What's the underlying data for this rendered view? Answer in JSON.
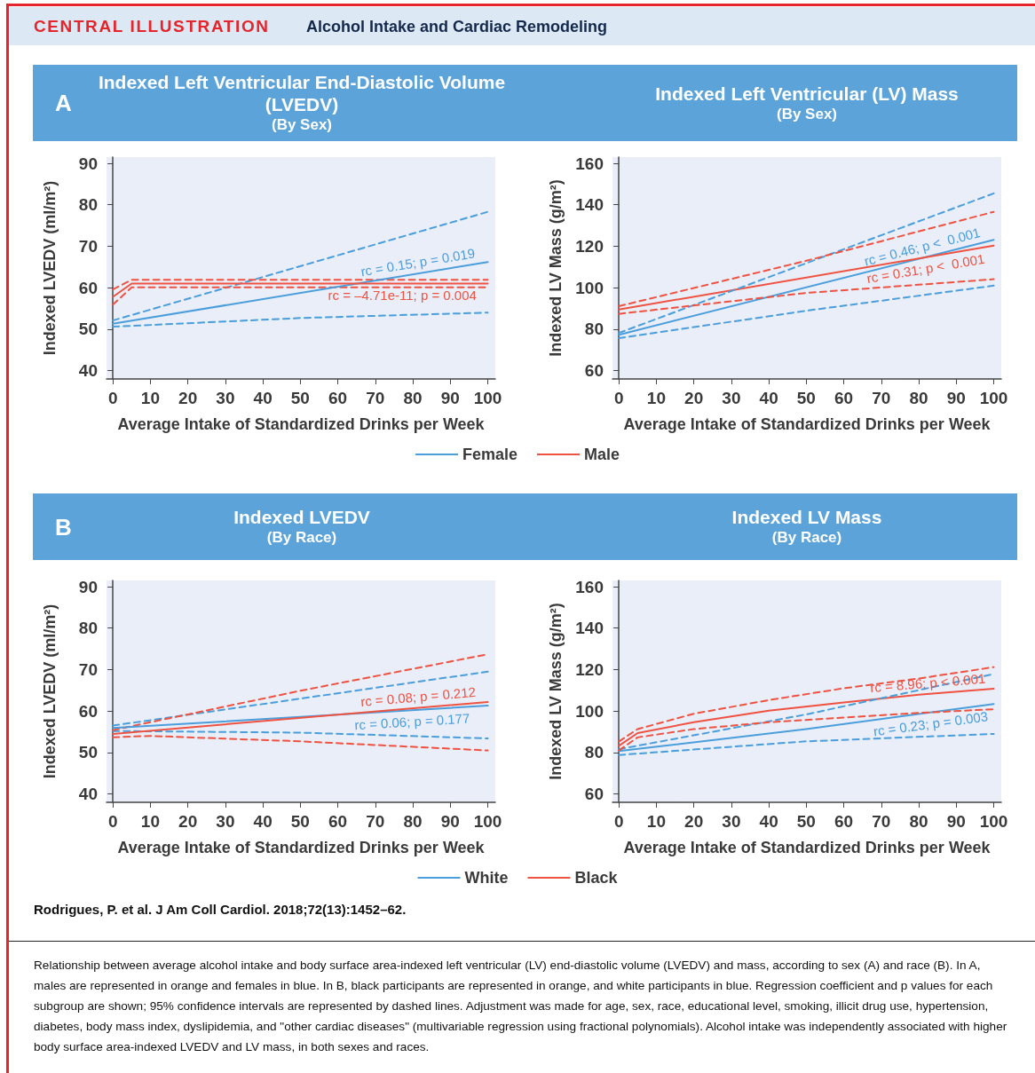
{
  "chart_data": [
    {
      "type": "line",
      "title": "Indexed Left Ventricular End-Diastolic Volume (LVEDV)",
      "subtitle": "(By Sex)",
      "xlabel": "Average Intake of Standardized Drinks per Week",
      "ylabel": "Indexed LVEDV (ml/m²)",
      "xlim": [
        -1.7,
        102
      ],
      "xticks": [
        0,
        10,
        20,
        30,
        40,
        50,
        60,
        70,
        80,
        90,
        100
      ],
      "ylim": [
        38,
        91.5
      ],
      "yticks": [
        40,
        50,
        60,
        70,
        80,
        90
      ],
      "legend": "bottom",
      "marker": "none",
      "series": [
        {
          "name": "Female",
          "color": "#4a9edb",
          "line_style": "solid",
          "x": [
            0,
            100
          ],
          "values": [
            51.3,
            66.2
          ]
        },
        {
          "name": "Male",
          "color": "#ef5241",
          "line_style": "solid",
          "x": [
            0,
            5,
            100
          ],
          "values": [
            57.8,
            61.0,
            61.0
          ]
        },
        {
          "color": "#4a9edb",
          "line_style": "dashed",
          "x": [
            0,
            100
          ],
          "values": [
            52.1,
            78.3
          ]
        },
        {
          "color": "#4a9edb",
          "line_style": "dashed",
          "x": [
            0,
            50,
            100
          ],
          "values": [
            50.6,
            52.7,
            54.0
          ]
        },
        {
          "color": "#ef5241",
          "line_style": "dashed",
          "x": [
            0,
            5,
            100
          ],
          "values": [
            59.6,
            61.9,
            61.9
          ]
        },
        {
          "color": "#ef5241",
          "line_style": "dashed",
          "x": [
            0,
            5,
            100
          ],
          "values": [
            55.9,
            60.1,
            60.1
          ]
        }
      ],
      "annotations": [
        "CENTRAL ILLUSTRATION",
        "Alcohol Intake and Cardiac Remodeling",
        "A",
        {
          "text": "rc = 0.15; p = 0.019",
          "x": 97,
          "y": 65.8
        },
        {
          "text": "rc = –4.71e-11; p = 0.004",
          "x": 97,
          "y": 61.0
        }
      ]
    },
    {
      "type": "line",
      "title": "Indexed Left Ventricular (LV) Mass",
      "subtitle": "(By Sex)",
      "xlabel": "Average Intake of Standardized Drinks per Week",
      "ylabel": "Indexed LV Mass (g/m²)",
      "xlim": [
        -1.7,
        102
      ],
      "xticks": [
        0,
        10,
        20,
        30,
        40,
        50,
        60,
        70,
        80,
        90,
        100
      ],
      "ylim": [
        56,
        163
      ],
      "yticks": [
        60,
        80,
        100,
        120,
        140,
        160
      ],
      "marker": "none",
      "series": [
        {
          "color": "#4a9edb",
          "line_style": "solid",
          "x": [
            0,
            100
          ],
          "values": [
            77.3,
            123.1
          ]
        },
        {
          "color": "#ef5241",
          "line_style": "solid",
          "x": [
            0,
            100
          ],
          "values": [
            89.5,
            120.3
          ]
        },
        {
          "color": "#4a9edb",
          "line_style": "dashed",
          "x": [
            0,
            100
          ],
          "values": [
            78.2,
            145.5
          ]
        },
        {
          "color": "#4a9edb",
          "line_style": "dashed",
          "x": [
            0,
            50,
            100
          ],
          "values": [
            75.7,
            88.9,
            101.0
          ]
        },
        {
          "color": "#ef5241",
          "line_style": "dashed",
          "x": [
            0,
            50,
            100
          ],
          "values": [
            91.1,
            113.0,
            136.6
          ]
        },
        {
          "color": "#ef5241",
          "line_style": "dashed",
          "x": [
            0,
            50,
            100
          ],
          "values": [
            87.4,
            97.5,
            104.1
          ]
        }
      ],
      "annotations": [
        {
          "text": "rc = 0.46; p <  0.001",
          "x": 97,
          "y": 121.7
        },
        {
          "text": "rc = 0.31; p <  0.001",
          "x": 97,
          "y": 119.4
        }
      ]
    },
    {
      "type": "line",
      "title": "Indexed LVEDV",
      "subtitle": "(By Race)",
      "xlabel": "Average Intake of Standardized Drinks per Week",
      "ylabel": "Indexed LVEDV (ml/m²)",
      "xlim": [
        -1.7,
        102
      ],
      "xticks": [
        0,
        10,
        20,
        30,
        40,
        50,
        60,
        70,
        80,
        90,
        100
      ],
      "ylim": [
        38,
        91.5
      ],
      "yticks": [
        40,
        50,
        60,
        70,
        80,
        90
      ],
      "legend": "bottom",
      "marker": "none",
      "series": [
        {
          "name": "White",
          "color": "#4a9edb",
          "line_style": "solid",
          "x": [
            0,
            100
          ],
          "values": [
            55.9,
            61.3
          ]
        },
        {
          "name": "Black",
          "color": "#ef5241",
          "line_style": "solid",
          "x": [
            0,
            100
          ],
          "values": [
            54.5,
            62.2
          ]
        },
        {
          "color": "#4a9edb",
          "line_style": "dashed",
          "x": [
            0,
            100
          ],
          "values": [
            56.5,
            69.5
          ]
        },
        {
          "color": "#4a9edb",
          "line_style": "dashed",
          "x": [
            0,
            50,
            100
          ],
          "values": [
            55.2,
            54.8,
            53.4
          ]
        },
        {
          "color": "#ef5241",
          "line_style": "dashed",
          "x": [
            0,
            50,
            100
          ],
          "values": [
            55.4,
            64.9,
            73.7
          ]
        },
        {
          "color": "#ef5241",
          "line_style": "dashed",
          "x": [
            0,
            10,
            50,
            100
          ],
          "values": [
            53.7,
            54.0,
            52.7,
            50.5
          ]
        }
      ],
      "annotations": [
        "B",
        {
          "text": "rc = 0.06; p = 0.177",
          "x": 95,
          "y": 61.0
        },
        {
          "text": "rc = 0.08; p = 0.212",
          "x": 97,
          "y": 62.0
        }
      ]
    },
    {
      "type": "line",
      "title": "Indexed LV Mass",
      "subtitle": "(By Race)",
      "xlabel": "Average Intake of Standardized Drinks per Week",
      "ylabel": "Indexed LV Mass (g/m²)",
      "xlim": [
        -1.7,
        102
      ],
      "xticks": [
        0,
        10,
        20,
        30,
        40,
        50,
        60,
        70,
        80,
        90,
        100
      ],
      "ylim": [
        56,
        163
      ],
      "yticks": [
        60,
        80,
        100,
        120,
        140,
        160
      ],
      "marker": "none",
      "series": [
        {
          "color": "#4a9edb",
          "line_style": "solid",
          "x": [
            0,
            50,
            100
          ],
          "values": [
            80.7,
            91.3,
            103.4
          ]
        },
        {
          "color": "#ef5241",
          "line_style": "solid",
          "x": [
            0,
            5,
            20,
            40,
            60,
            80,
            100
          ],
          "values": [
            83.2,
            89.4,
            94.6,
            100.2,
            104.2,
            107.9,
            110.8
          ]
        },
        {
          "color": "#4a9edb",
          "line_style": "dashed",
          "x": [
            0,
            50,
            100
          ],
          "values": [
            81.6,
            98.4,
            117.9
          ]
        },
        {
          "color": "#4a9edb",
          "line_style": "dashed",
          "x": [
            0,
            50,
            100
          ],
          "values": [
            78.8,
            85.4,
            89.0
          ]
        },
        {
          "color": "#ef5241",
          "line_style": "dashed",
          "x": [
            0,
            5,
            20,
            40,
            60,
            80,
            100
          ],
          "values": [
            85.3,
            91.3,
            98.7,
            105.3,
            111.0,
            115.7,
            121.2
          ]
        },
        {
          "color": "#ef5241",
          "line_style": "dashed",
          "x": [
            0,
            5,
            20,
            40,
            60,
            80,
            100
          ],
          "values": [
            81.0,
            87.3,
            91.3,
            94.6,
            96.9,
            99.1,
            100.9
          ]
        }
      ],
      "annotations": [
        "Rodrigues, P. et al. J Am Coll Cardiol. 2018;72(13):1452–62.",
        "Relationship between average alcohol intake and body surface area-indexed left ventricular (LV) end-diastolic volume (LVEDV) and mass, according to sex (A) and race (B). In A, males are represented in orange and females in blue. In B, black participants are represented in orange, and white participants in blue. Regression coefficient and p values for each subgroup are shown; 95% confidence intervals are represented by dashed lines. Adjustment was made for age, sex, race, educational level, smoking, illicit drug use, hypertension, diabetes, body mass index, dyslipidemia, and \"other cardiac diseases\" (multivariable regression using fractional polynomials). Alcohol intake was independently associated with higher body surface area-indexed LVEDV and LV mass, in both sexes and races.",
        {
          "text": "rc = 0.23; p = 0.003",
          "x": 98,
          "y": 102.9
        },
        {
          "text": "rc = 8.96; p < 0.001",
          "x": 98,
          "y": 110.5
        }
      ]
    }
  ]
}
